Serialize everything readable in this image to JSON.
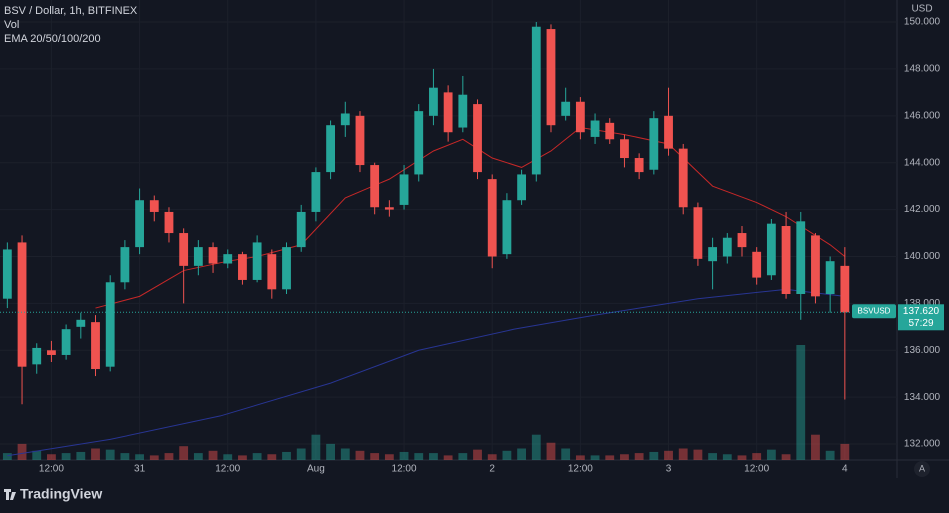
{
  "header": {
    "title": "BSV / Dollar, 1h, BITFINEX",
    "volume_label": "Vol",
    "ema_label": "EMA 20/50/100/200"
  },
  "currency": "USD",
  "brand": "TradingView",
  "scale_button": "A",
  "chart_data": {
    "type": "candlestick",
    "x": [
      1,
      3,
      5,
      7,
      9,
      11,
      13,
      15,
      17,
      19,
      21,
      23,
      25,
      27,
      29,
      31,
      33,
      35,
      37,
      39,
      41,
      43,
      45,
      47,
      49,
      51,
      53,
      55,
      57,
      59,
      61,
      63,
      65,
      67,
      69,
      71,
      73,
      75,
      77,
      79,
      81,
      83,
      85,
      87,
      89,
      91,
      93,
      95,
      97,
      99,
      101,
      103,
      105,
      107,
      109,
      111,
      113,
      115
    ],
    "open": [
      138.2,
      140.6,
      135.4,
      136.0,
      135.8,
      137.0,
      137.2,
      135.3,
      138.9,
      140.4,
      142.4,
      141.9,
      141.0,
      139.6,
      140.4,
      139.7,
      140.1,
      139.0,
      140.1,
      138.6,
      140.4,
      141.9,
      143.6,
      145.6,
      146.0,
      143.9,
      142.1,
      142.2,
      143.5,
      146.0,
      147.0,
      145.5,
      146.5,
      143.3,
      140.1,
      142.4,
      143.5,
      149.7,
      146.0,
      146.6,
      145.1,
      145.7,
      145.0,
      144.2,
      143.7,
      146.0,
      144.6,
      142.1,
      139.8,
      140.0,
      141.0,
      140.2,
      139.2,
      141.3,
      138.4,
      140.9,
      138.4,
      139.6
    ],
    "high": [
      140.6,
      140.9,
      136.3,
      136.4,
      137.1,
      137.6,
      137.5,
      139.2,
      140.7,
      142.9,
      142.6,
      142.1,
      141.2,
      140.7,
      140.6,
      140.3,
      140.2,
      140.9,
      140.3,
      140.6,
      142.2,
      143.8,
      145.8,
      146.6,
      146.2,
      144.0,
      142.4,
      143.9,
      146.5,
      148.0,
      147.3,
      147.7,
      146.7,
      143.5,
      142.7,
      143.7,
      150.0,
      149.9,
      147.2,
      146.8,
      146.1,
      145.9,
      145.2,
      144.4,
      146.2,
      147.2,
      144.8,
      142.3,
      140.8,
      141.0,
      141.3,
      140.4,
      141.6,
      141.9,
      141.9,
      141.0,
      140.0,
      140.4
    ],
    "low": [
      137.8,
      133.7,
      135.0,
      135.5,
      135.6,
      136.5,
      134.9,
      135.1,
      138.6,
      140.1,
      141.5,
      140.6,
      138.0,
      139.2,
      139.3,
      139.5,
      138.8,
      138.9,
      138.2,
      138.4,
      140.2,
      141.5,
      143.3,
      145.1,
      143.6,
      141.8,
      141.7,
      142.0,
      143.2,
      145.6,
      144.9,
      145.3,
      143.3,
      139.5,
      139.9,
      142.2,
      143.2,
      145.3,
      145.8,
      145.0,
      144.8,
      144.8,
      143.8,
      143.3,
      143.5,
      144.3,
      141.8,
      139.6,
      138.6,
      139.7,
      140.0,
      138.8,
      139.0,
      138.2,
      137.3,
      138.0,
      137.6,
      133.9
    ],
    "close": [
      140.3,
      135.3,
      136.1,
      135.8,
      136.9,
      137.3,
      135.2,
      138.9,
      140.4,
      142.4,
      141.9,
      141.0,
      139.6,
      140.4,
      139.7,
      140.1,
      139.0,
      140.6,
      138.6,
      140.4,
      141.9,
      143.6,
      145.6,
      146.1,
      143.9,
      142.1,
      142.0,
      143.5,
      146.2,
      147.2,
      145.3,
      146.9,
      143.6,
      140.0,
      142.4,
      143.5,
      149.8,
      145.6,
      146.6,
      145.3,
      145.8,
      145.0,
      144.2,
      143.6,
      145.9,
      144.6,
      142.1,
      139.9,
      140.4,
      140.8,
      140.4,
      139.1,
      141.4,
      138.4,
      141.5,
      138.3,
      139.8,
      137.62
    ],
    "volume": [
      6,
      14,
      8,
      5,
      6,
      7,
      10,
      9,
      6,
      5,
      4,
      6,
      12,
      6,
      8,
      5,
      4,
      6,
      5,
      7,
      10,
      22,
      14,
      10,
      8,
      6,
      5,
      7,
      6,
      6,
      4,
      6,
      9,
      5,
      8,
      10,
      22,
      15,
      10,
      4,
      4,
      4,
      5,
      6,
      7,
      8,
      10,
      9,
      6,
      5,
      4,
      6,
      9,
      5,
      100,
      22,
      8,
      14
    ],
    "up_color": "#26a69a",
    "down_color": "#ef5350",
    "lines": [
      {
        "color": "#c62828",
        "x": [
          13,
          19,
          25,
          31,
          35,
          41,
          47,
          53,
          59,
          63,
          67,
          71,
          75,
          79,
          85,
          91,
          97,
          103,
          107,
          113,
          115
        ],
        "values": [
          137.8,
          138.3,
          139.4,
          139.8,
          140.0,
          140.5,
          142.5,
          143.3,
          144.5,
          145.0,
          144.2,
          143.8,
          144.5,
          145.5,
          145.2,
          144.8,
          143.0,
          142.3,
          141.7,
          140.5,
          140.0
        ]
      },
      {
        "color": "#283593",
        "x": [
          1,
          15,
          30,
          45,
          57,
          70,
          81,
          95,
          107,
          115
        ],
        "values": [
          131.5,
          132.2,
          133.2,
          134.6,
          136.0,
          136.9,
          137.5,
          138.2,
          138.6,
          138.3
        ]
      }
    ],
    "xlim": [
      0,
      122.1
    ],
    "ylim": [
      131.32,
      150.94
    ],
    "vlim": [
      0,
      400
    ],
    "xticks": [
      {
        "value": 7,
        "label": "12:00"
      },
      {
        "value": 19,
        "label": "31"
      },
      {
        "value": 31,
        "label": "12:00"
      },
      {
        "value": 43,
        "label": "Aug"
      },
      {
        "value": 55,
        "label": "12:00"
      },
      {
        "value": 67,
        "label": "2"
      },
      {
        "value": 79,
        "label": "12:00"
      },
      {
        "value": 91,
        "label": "3"
      },
      {
        "value": 103,
        "label": "12:00"
      },
      {
        "value": 115,
        "label": "4"
      }
    ],
    "yticks": [
      {
        "value": 132,
        "label": "132.000"
      },
      {
        "value": 134,
        "label": "134.000"
      },
      {
        "value": 136,
        "label": "136.000"
      },
      {
        "value": 138,
        "label": "138.000"
      },
      {
        "value": 140,
        "label": "140.000"
      },
      {
        "value": 142,
        "label": "142.000"
      },
      {
        "value": 144,
        "label": "144.000"
      },
      {
        "value": 146,
        "label": "146.000"
      },
      {
        "value": 148,
        "label": "148.000"
      },
      {
        "value": 150,
        "label": "150.000"
      }
    ],
    "grid": true,
    "last_price": {
      "symbol": "BSVUSD",
      "value": 137.62,
      "label": "137.620",
      "countdown": "57:29"
    }
  }
}
